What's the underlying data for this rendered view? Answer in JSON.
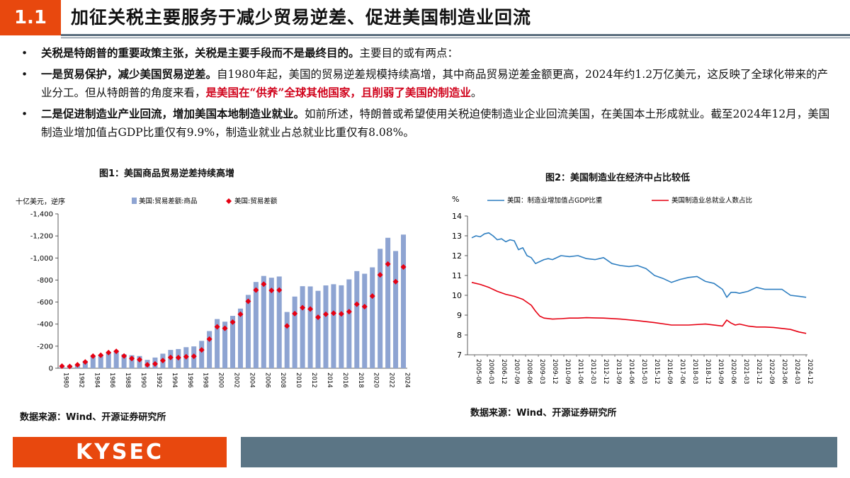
{
  "header": {
    "section_number": "1.1",
    "title": "加征关税主要服务于减少贸易逆差、促进美国制造业回流"
  },
  "bullets": [
    {
      "bold": "关税是特朗普的重要政策主张，关税是主要手段而不是最终目的。",
      "text": "主要目的或有两点：",
      "red": "",
      "tail": ""
    },
    {
      "bold": "一是贸易保护，减少美国贸易逆差。",
      "text": "自1980年起，美国的贸易逆差规模持续高增，其中商品贸易逆差金额更高，2024年约1.2万亿美元，这反映了全球化带来的产业分工。但从特朗普的角度来看，",
      "red": "是美国在“供养”全球其他国家，且削弱了美国的制造业",
      "tail": "。"
    },
    {
      "bold": "二是促进制造业产业回流，增加美国本地制造业就业。",
      "text": "如前所述，特朗普或希望使用关税迫使制造业企业回流美国，在美国本土形成就业。截至2024年12月，美国制造业增加值占GDP比重仅有9.9%，制造业就业占总就业比重仅有8.08%。",
      "red": "",
      "tail": ""
    }
  ],
  "source_left": "数据来源：Wind、开源证券研究所",
  "source_right": "数据来源：Wind、开源证券研究所",
  "footer": {
    "logo": "KYSEC"
  },
  "colors": {
    "accent": "#e8480e",
    "bar": "#8ea4d2",
    "dot": "#e60012",
    "line_blue": "#2f7fc1",
    "line_red": "#e60012",
    "footer_gray": "#5b7585"
  },
  "chart_data": [
    {
      "type": "bar",
      "title": "图1：美国商品贸易逆差持续高增",
      "ylabel": "十亿美元，逆序",
      "ylim": [
        0,
        -1400
      ],
      "yticks": [
        "0",
        "-200",
        "-400",
        "-600",
        "-800",
        "-1,000",
        "-1,200",
        "-1,400"
      ],
      "categories": [
        "1980",
        "1981",
        "1982",
        "1983",
        "1984",
        "1985",
        "1986",
        "1987",
        "1988",
        "1989",
        "1990",
        "1991",
        "1992",
        "1993",
        "1994",
        "1995",
        "1996",
        "1997",
        "1998",
        "1999",
        "2000",
        "2001",
        "2002",
        "2003",
        "2004",
        "2005",
        "2006",
        "2007",
        "2008",
        "2009",
        "2010",
        "2011",
        "2012",
        "2013",
        "2014",
        "2015",
        "2016",
        "2017",
        "2018",
        "2019",
        "2020",
        "2021",
        "2022",
        "2023",
        "2024"
      ],
      "xtick_labels": [
        "1980",
        "1982",
        "1984",
        "1986",
        "1988",
        "1990",
        "1992",
        "1994",
        "1996",
        "1998",
        "2000",
        "2002",
        "2004",
        "2006",
        "2008",
        "2010",
        "2012",
        "2014",
        "2016",
        "2018",
        "2020",
        "2022",
        "2024"
      ],
      "series": [
        {
          "name": "美国:贸易差额:商品",
          "kind": "bar",
          "values": [
            -25,
            -28,
            -36,
            -67,
            -112,
            -122,
            -145,
            -160,
            -127,
            -118,
            -111,
            -76,
            -97,
            -132,
            -166,
            -174,
            -191,
            -198,
            -248,
            -337,
            -446,
            -422,
            -475,
            -541,
            -665,
            -782,
            -837,
            -821,
            -832,
            -510,
            -650,
            -744,
            -742,
            -702,
            -751,
            -762,
            -752,
            -806,
            -881,
            -857,
            -915,
            -1083,
            -1183,
            -1063,
            -1212
          ]
        },
        {
          "name": "美国:贸易差额",
          "kind": "scatter",
          "values": [
            -19,
            -16,
            -31,
            -57,
            -110,
            -118,
            -142,
            -153,
            -111,
            -88,
            -78,
            -31,
            -39,
            -70,
            -98,
            -96,
            -104,
            -108,
            -166,
            -264,
            -376,
            -362,
            -418,
            -490,
            -607,
            -709,
            -763,
            -706,
            -709,
            -384,
            -495,
            -549,
            -537,
            -462,
            -490,
            -499,
            -493,
            -513,
            -580,
            -559,
            -654,
            -847,
            -945,
            -785,
            -918
          ]
        }
      ]
    },
    {
      "type": "line",
      "title": "图2：美国制造业在经济中占比较低",
      "ylabel": "%",
      "ylim": [
        7,
        14
      ],
      "yticks": [
        "7",
        "8",
        "9",
        "10",
        "11",
        "12",
        "13",
        "14"
      ],
      "xtick_labels": [
        "2005-06",
        "2006-03",
        "2006-12",
        "2007-09",
        "2008-06",
        "2009-03",
        "2009-12",
        "2010-09",
        "2011-06",
        "2012-03",
        "2012-12",
        "2013-09",
        "2014-06",
        "2015-03",
        "2015-12",
        "2016-09",
        "2017-06",
        "2018-03",
        "2018-12",
        "2019-09",
        "2020-06",
        "2021-03",
        "2021-12",
        "2022-09",
        "2023-06",
        "2024-03",
        "2024-12"
      ],
      "series": [
        {
          "name": "美国：制造业增加值占GDP比重",
          "x": [
            2005.25,
            2005.5,
            2005.75,
            2006.0,
            2006.25,
            2006.5,
            2006.75,
            2007.0,
            2007.25,
            2007.5,
            2007.75,
            2008.0,
            2008.25,
            2008.5,
            2008.75,
            2009.0,
            2009.25,
            2009.5,
            2009.75,
            2010.0,
            2010.5,
            2011.0,
            2011.5,
            2012.0,
            2012.5,
            2013.0,
            2013.5,
            2014.0,
            2014.5,
            2015.0,
            2015.5,
            2016.0,
            2016.5,
            2017.0,
            2017.5,
            2018.0,
            2018.5,
            2019.0,
            2019.5,
            2020.0,
            2020.25,
            2020.5,
            2020.75,
            2021.0,
            2021.5,
            2022.0,
            2022.5,
            2023.0,
            2023.5,
            2024.0,
            2024.5,
            2024.92
          ],
          "values": [
            12.9,
            13.0,
            12.95,
            13.1,
            13.15,
            13.0,
            12.8,
            12.85,
            12.7,
            12.8,
            12.75,
            12.3,
            12.4,
            12.0,
            11.9,
            11.6,
            11.7,
            11.8,
            11.85,
            11.8,
            12.0,
            11.95,
            12.0,
            11.85,
            11.8,
            11.9,
            11.6,
            11.5,
            11.45,
            11.5,
            11.35,
            11.0,
            10.85,
            10.65,
            10.8,
            10.9,
            10.95,
            10.7,
            10.6,
            10.3,
            9.9,
            10.15,
            10.15,
            10.1,
            10.2,
            10.4,
            10.3,
            10.3,
            10.3,
            10.0,
            9.95,
            9.9
          ]
        },
        {
          "name": "美国制造业总就业人数占比",
          "x": [
            2005.25,
            2005.75,
            2006.25,
            2006.75,
            2007.25,
            2007.75,
            2008.25,
            2008.75,
            2009.0,
            2009.25,
            2009.5,
            2010.0,
            2010.5,
            2011.0,
            2011.5,
            2012.0,
            2012.5,
            2013.0,
            2014.0,
            2015.0,
            2016.0,
            2017.0,
            2018.0,
            2019.0,
            2020.0,
            2020.25,
            2020.5,
            2020.75,
            2021.0,
            2021.5,
            2022.0,
            2022.5,
            2023.0,
            2023.5,
            2024.0,
            2024.5,
            2024.92
          ],
          "values": [
            10.65,
            10.55,
            10.4,
            10.2,
            10.05,
            9.95,
            9.8,
            9.5,
            9.2,
            8.95,
            8.85,
            8.8,
            8.82,
            8.85,
            8.85,
            8.87,
            8.86,
            8.85,
            8.8,
            8.72,
            8.62,
            8.5,
            8.5,
            8.55,
            8.45,
            8.75,
            8.6,
            8.5,
            8.55,
            8.45,
            8.4,
            8.4,
            8.38,
            8.33,
            8.28,
            8.15,
            8.08
          ]
        }
      ]
    }
  ]
}
